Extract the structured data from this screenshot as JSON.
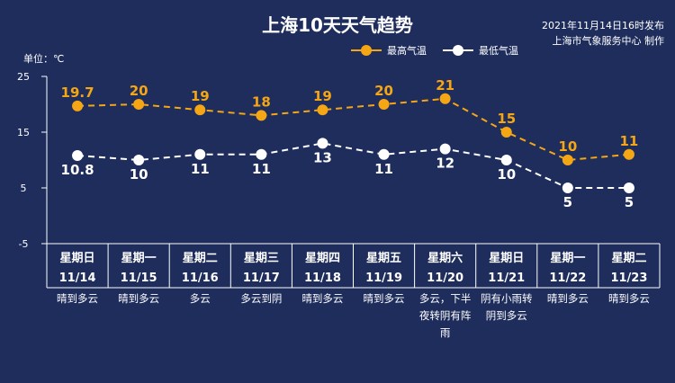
{
  "header": {
    "title": "上海10天天气趋势",
    "publish_time": "2021年11月14日16时发布",
    "publisher": "上海市气象服务中心 制作",
    "unit": "单位：℃"
  },
  "colors": {
    "high": "#f5a615",
    "low": "#ffffff",
    "background": "#1e2d5c",
    "grid": "#ffffff"
  },
  "chart_data": {
    "type": "line",
    "title": "上海10天天气趋势",
    "ylabel": "单位：℃",
    "ylim": [
      -5,
      25
    ],
    "yticks": [
      25,
      15,
      5,
      -5
    ],
    "grid": false,
    "legend_position": "top-center",
    "days": [
      {
        "weekday": "星期日",
        "date": "11/14",
        "weather": [
          "晴到多云"
        ]
      },
      {
        "weekday": "星期一",
        "date": "11/15",
        "weather": [
          "晴到多云"
        ]
      },
      {
        "weekday": "星期二",
        "date": "11/16",
        "weather": [
          "多云"
        ]
      },
      {
        "weekday": "星期三",
        "date": "11/17",
        "weather": [
          "多云到阴"
        ]
      },
      {
        "weekday": "星期四",
        "date": "11/18",
        "weather": [
          "晴到多云"
        ]
      },
      {
        "weekday": "星期五",
        "date": "11/19",
        "weather": [
          "晴到多云"
        ]
      },
      {
        "weekday": "星期六",
        "date": "11/20",
        "weather": [
          "多云，下半",
          "夜转阴有阵",
          "雨"
        ]
      },
      {
        "weekday": "星期日",
        "date": "11/21",
        "weather": [
          "阴有小雨转",
          "阴到多云"
        ]
      },
      {
        "weekday": "星期一",
        "date": "11/22",
        "weather": [
          "晴到多云"
        ]
      },
      {
        "weekday": "星期二",
        "date": "11/23",
        "weather": [
          "晴到多云"
        ]
      }
    ],
    "series": [
      {
        "name": "最高气温",
        "values": [
          19.7,
          20,
          19,
          18,
          19,
          20,
          21,
          15,
          10,
          11
        ],
        "labels": [
          "19.7",
          "20",
          "19",
          "18",
          "19",
          "20",
          "21",
          "15",
          "10",
          "11"
        ]
      },
      {
        "name": "最低气温",
        "values": [
          10.8,
          10,
          11,
          11,
          13,
          11,
          12,
          10,
          5,
          5
        ],
        "labels": [
          "10.8",
          "10",
          "11",
          "11",
          "13",
          "11",
          "12",
          "10",
          "5",
          "5"
        ]
      }
    ]
  }
}
